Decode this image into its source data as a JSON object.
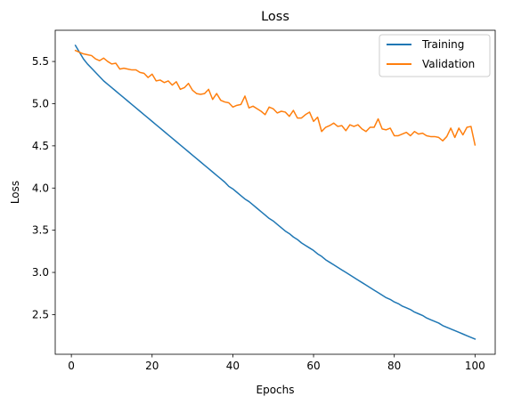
{
  "chart_data": {
    "type": "line",
    "title": "Loss",
    "xlabel": "Epochs",
    "ylabel": "Loss",
    "xlim": [
      -4,
      105
    ],
    "ylim": [
      2.03,
      5.87
    ],
    "xticks": [
      0,
      20,
      40,
      60,
      80,
      100
    ],
    "yticks": [
      2.5,
      3.0,
      3.5,
      4.0,
      4.5,
      5.0,
      5.5
    ],
    "ytick_labels": [
      "2.5",
      "3.0",
      "3.5",
      "4.0",
      "4.5",
      "5.0",
      "5.5"
    ],
    "grid": false,
    "legend_position": "top-right",
    "x": [
      1,
      2,
      3,
      4,
      5,
      6,
      7,
      8,
      9,
      10,
      11,
      12,
      13,
      14,
      15,
      16,
      17,
      18,
      19,
      20,
      21,
      22,
      23,
      24,
      25,
      26,
      27,
      28,
      29,
      30,
      31,
      32,
      33,
      34,
      35,
      36,
      37,
      38,
      39,
      40,
      41,
      42,
      43,
      44,
      45,
      46,
      47,
      48,
      49,
      50,
      51,
      52,
      53,
      54,
      55,
      56,
      57,
      58,
      59,
      60,
      61,
      62,
      63,
      64,
      65,
      66,
      67,
      68,
      69,
      70,
      71,
      72,
      73,
      74,
      75,
      76,
      77,
      78,
      79,
      80,
      81,
      82,
      83,
      84,
      85,
      86,
      87,
      88,
      89,
      90,
      91,
      92,
      93,
      94,
      95,
      96,
      97,
      98,
      99,
      100
    ],
    "series": [
      {
        "name": "Training",
        "color": "#1f77b4",
        "values": [
          5.69,
          5.61,
          5.53,
          5.47,
          5.42,
          5.37,
          5.32,
          5.27,
          5.23,
          5.19,
          5.15,
          5.11,
          5.07,
          5.03,
          4.99,
          4.95,
          4.91,
          4.87,
          4.83,
          4.79,
          4.75,
          4.71,
          4.67,
          4.63,
          4.59,
          4.55,
          4.51,
          4.47,
          4.43,
          4.39,
          4.35,
          4.31,
          4.27,
          4.23,
          4.19,
          4.15,
          4.11,
          4.07,
          4.02,
          3.99,
          3.95,
          3.91,
          3.87,
          3.84,
          3.8,
          3.76,
          3.72,
          3.68,
          3.64,
          3.61,
          3.57,
          3.53,
          3.49,
          3.46,
          3.42,
          3.39,
          3.35,
          3.32,
          3.29,
          3.26,
          3.22,
          3.19,
          3.15,
          3.12,
          3.09,
          3.06,
          3.03,
          3.0,
          2.97,
          2.94,
          2.91,
          2.88,
          2.85,
          2.82,
          2.79,
          2.76,
          2.73,
          2.7,
          2.68,
          2.65,
          2.63,
          2.6,
          2.58,
          2.56,
          2.53,
          2.51,
          2.49,
          2.46,
          2.44,
          2.42,
          2.4,
          2.37,
          2.35,
          2.33,
          2.31,
          2.29,
          2.27,
          2.25,
          2.23,
          2.21
        ]
      },
      {
        "name": "Validation",
        "color": "#ff7f0e",
        "values": [
          5.63,
          5.61,
          5.59,
          5.58,
          5.57,
          5.53,
          5.51,
          5.54,
          5.5,
          5.47,
          5.48,
          5.41,
          5.42,
          5.41,
          5.4,
          5.4,
          5.37,
          5.36,
          5.31,
          5.35,
          5.27,
          5.28,
          5.25,
          5.27,
          5.22,
          5.26,
          5.17,
          5.19,
          5.24,
          5.16,
          5.12,
          5.11,
          5.12,
          5.17,
          5.05,
          5.12,
          5.04,
          5.02,
          5.01,
          4.96,
          4.98,
          4.99,
          5.09,
          4.95,
          4.97,
          4.94,
          4.91,
          4.87,
          4.96,
          4.94,
          4.89,
          4.91,
          4.9,
          4.85,
          4.92,
          4.83,
          4.83,
          4.87,
          4.9,
          4.79,
          4.84,
          4.67,
          4.72,
          4.74,
          4.77,
          4.73,
          4.74,
          4.68,
          4.75,
          4.73,
          4.75,
          4.7,
          4.67,
          4.72,
          4.72,
          4.82,
          4.7,
          4.69,
          4.71,
          4.62,
          4.62,
          4.64,
          4.66,
          4.62,
          4.67,
          4.64,
          4.65,
          4.62,
          4.61,
          4.61,
          4.6,
          4.56,
          4.61,
          4.71,
          4.6,
          4.71,
          4.63,
          4.72,
          4.73,
          4.51
        ]
      }
    ]
  }
}
